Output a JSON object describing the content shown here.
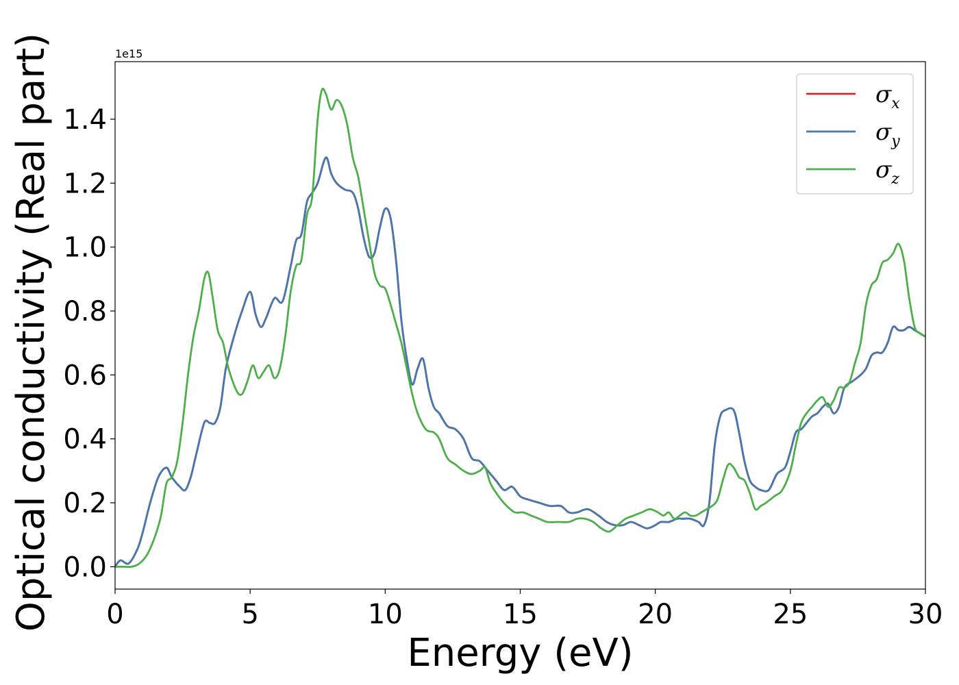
{
  "chart_data": {
    "type": "line",
    "title": "",
    "xlabel": "Energy (eV)",
    "ylabel": "Optical conductivity (Real part)",
    "y_offset_label": "1e15",
    "xlim": [
      0,
      30
    ],
    "ylim": [
      -0.07,
      1.58
    ],
    "y_scale_factor": 1000000000000000.0,
    "xticks": [
      0,
      5,
      10,
      15,
      20,
      25,
      30
    ],
    "xtick_labels": [
      "0",
      "5",
      "10",
      "15",
      "20",
      "25",
      "30"
    ],
    "yticks": [
      0.0,
      0.2,
      0.4,
      0.6,
      0.8,
      1.0,
      1.2,
      1.4
    ],
    "ytick_labels": [
      "0.0",
      "0.2",
      "0.4",
      "0.6",
      "0.8",
      "1.0",
      "1.2",
      "1.4"
    ],
    "grid": false,
    "legend_position": "top-right",
    "series": [
      {
        "name": "σx",
        "sym": "σ",
        "sub": "x",
        "color": "#d62728",
        "x": [
          0,
          0.2,
          0.5,
          0.8,
          1.0,
          1.3,
          1.6,
          1.9,
          2.1,
          2.4,
          2.6,
          2.8,
          3.0,
          3.3,
          3.5,
          3.7,
          3.9,
          4.1,
          4.4,
          4.7,
          5.0,
          5.2,
          5.4,
          5.6,
          5.9,
          6.2,
          6.5,
          6.7,
          6.9,
          7.1,
          7.3,
          7.5,
          7.8,
          8.0,
          8.2,
          8.5,
          8.8,
          9.0,
          9.2,
          9.4,
          9.6,
          9.8,
          10.0,
          10.2,
          10.4,
          10.6,
          10.8,
          11.0,
          11.2,
          11.4,
          11.6,
          11.8,
          12.0,
          12.3,
          12.6,
          12.9,
          13.2,
          13.5,
          13.8,
          14.1,
          14.4,
          14.7,
          15.0,
          15.3,
          15.7,
          16.1,
          16.5,
          16.8,
          17.1,
          17.5,
          17.9,
          18.2,
          18.5,
          18.8,
          19.1,
          19.4,
          19.7,
          20.0,
          20.2,
          20.5,
          20.8,
          21.0,
          21.3,
          21.6,
          21.8,
          22.0,
          22.2,
          22.4,
          22.6,
          22.9,
          23.1,
          23.3,
          23.5,
          23.7,
          23.9,
          24.2,
          24.5,
          24.8,
          25.0,
          25.2,
          25.4,
          25.6,
          25.8,
          26.0,
          26.2,
          26.4,
          26.6,
          26.8,
          27.0,
          27.3,
          27.6,
          27.8,
          28.0,
          28.2,
          28.4,
          28.6,
          28.8,
          29.0,
          29.2,
          29.4,
          29.6,
          29.8,
          30.0
        ],
        "y": [
          0.0,
          0.02,
          0.01,
          0.05,
          0.1,
          0.2,
          0.28,
          0.31,
          0.28,
          0.25,
          0.24,
          0.28,
          0.35,
          0.45,
          0.45,
          0.45,
          0.5,
          0.62,
          0.72,
          0.8,
          0.86,
          0.79,
          0.75,
          0.78,
          0.84,
          0.83,
          0.94,
          1.02,
          1.04,
          1.14,
          1.17,
          1.2,
          1.28,
          1.23,
          1.2,
          1.18,
          1.17,
          1.12,
          1.03,
          0.97,
          0.98,
          1.06,
          1.12,
          1.09,
          0.96,
          0.77,
          0.65,
          0.57,
          0.62,
          0.65,
          0.56,
          0.5,
          0.48,
          0.44,
          0.43,
          0.4,
          0.34,
          0.33,
          0.3,
          0.27,
          0.24,
          0.25,
          0.22,
          0.21,
          0.2,
          0.19,
          0.19,
          0.17,
          0.17,
          0.18,
          0.16,
          0.14,
          0.13,
          0.13,
          0.14,
          0.13,
          0.12,
          0.13,
          0.14,
          0.14,
          0.15,
          0.15,
          0.15,
          0.14,
          0.13,
          0.2,
          0.38,
          0.47,
          0.49,
          0.49,
          0.42,
          0.33,
          0.27,
          0.25,
          0.24,
          0.24,
          0.29,
          0.31,
          0.36,
          0.42,
          0.43,
          0.45,
          0.47,
          0.48,
          0.5,
          0.51,
          0.48,
          0.5,
          0.56,
          0.58,
          0.6,
          0.62,
          0.66,
          0.67,
          0.67,
          0.7,
          0.75,
          0.74,
          0.74,
          0.75,
          0.74,
          0.73,
          0.72
        ]
      },
      {
        "name": "σy",
        "sym": "σ",
        "sub": "y",
        "color": "#4678b0",
        "x": [
          0,
          0.2,
          0.5,
          0.8,
          1.0,
          1.3,
          1.6,
          1.9,
          2.1,
          2.4,
          2.6,
          2.8,
          3.0,
          3.3,
          3.5,
          3.7,
          3.9,
          4.1,
          4.4,
          4.7,
          5.0,
          5.2,
          5.4,
          5.6,
          5.9,
          6.2,
          6.5,
          6.7,
          6.9,
          7.1,
          7.3,
          7.5,
          7.8,
          8.0,
          8.2,
          8.5,
          8.8,
          9.0,
          9.2,
          9.4,
          9.6,
          9.8,
          10.0,
          10.2,
          10.4,
          10.6,
          10.8,
          11.0,
          11.2,
          11.4,
          11.6,
          11.8,
          12.0,
          12.3,
          12.6,
          12.9,
          13.2,
          13.5,
          13.8,
          14.1,
          14.4,
          14.7,
          15.0,
          15.3,
          15.7,
          16.1,
          16.5,
          16.8,
          17.1,
          17.5,
          17.9,
          18.2,
          18.5,
          18.8,
          19.1,
          19.4,
          19.7,
          20.0,
          20.2,
          20.5,
          20.8,
          21.0,
          21.3,
          21.6,
          21.8,
          22.0,
          22.2,
          22.4,
          22.6,
          22.9,
          23.1,
          23.3,
          23.5,
          23.7,
          23.9,
          24.2,
          24.5,
          24.8,
          25.0,
          25.2,
          25.4,
          25.6,
          25.8,
          26.0,
          26.2,
          26.4,
          26.6,
          26.8,
          27.0,
          27.3,
          27.6,
          27.8,
          28.0,
          28.2,
          28.4,
          28.6,
          28.8,
          29.0,
          29.2,
          29.4,
          29.6,
          29.8,
          30.0
        ],
        "y": [
          0.0,
          0.02,
          0.01,
          0.05,
          0.1,
          0.2,
          0.28,
          0.31,
          0.28,
          0.25,
          0.24,
          0.28,
          0.35,
          0.45,
          0.45,
          0.45,
          0.5,
          0.62,
          0.72,
          0.8,
          0.86,
          0.79,
          0.75,
          0.78,
          0.84,
          0.83,
          0.94,
          1.02,
          1.04,
          1.14,
          1.17,
          1.2,
          1.28,
          1.23,
          1.2,
          1.18,
          1.17,
          1.12,
          1.03,
          0.97,
          0.98,
          1.06,
          1.12,
          1.09,
          0.96,
          0.77,
          0.65,
          0.57,
          0.62,
          0.65,
          0.56,
          0.5,
          0.48,
          0.44,
          0.43,
          0.4,
          0.34,
          0.33,
          0.3,
          0.27,
          0.24,
          0.25,
          0.22,
          0.21,
          0.2,
          0.19,
          0.19,
          0.17,
          0.17,
          0.18,
          0.16,
          0.14,
          0.13,
          0.13,
          0.14,
          0.13,
          0.12,
          0.13,
          0.14,
          0.14,
          0.15,
          0.15,
          0.15,
          0.14,
          0.13,
          0.2,
          0.38,
          0.47,
          0.49,
          0.49,
          0.42,
          0.33,
          0.27,
          0.25,
          0.24,
          0.24,
          0.29,
          0.31,
          0.36,
          0.42,
          0.43,
          0.45,
          0.47,
          0.48,
          0.5,
          0.51,
          0.48,
          0.5,
          0.56,
          0.58,
          0.6,
          0.62,
          0.66,
          0.67,
          0.67,
          0.7,
          0.75,
          0.74,
          0.74,
          0.75,
          0.74,
          0.73,
          0.72
        ]
      },
      {
        "name": "σz",
        "sym": "σ",
        "sub": "z",
        "color": "#4daf4a",
        "x": [
          0,
          0.3,
          0.6,
          0.9,
          1.2,
          1.5,
          1.7,
          1.9,
          2.1,
          2.3,
          2.5,
          2.7,
          2.9,
          3.1,
          3.3,
          3.45,
          3.6,
          3.8,
          4.0,
          4.2,
          4.5,
          4.7,
          4.9,
          5.1,
          5.3,
          5.5,
          5.7,
          5.9,
          6.1,
          6.3,
          6.5,
          6.7,
          6.9,
          7.1,
          7.3,
          7.5,
          7.65,
          7.8,
          8.0,
          8.2,
          8.4,
          8.6,
          8.8,
          9.0,
          9.2,
          9.4,
          9.6,
          9.8,
          10.0,
          10.2,
          10.4,
          10.6,
          10.8,
          11.0,
          11.2,
          11.5,
          11.8,
          12.0,
          12.3,
          12.6,
          12.9,
          13.2,
          13.5,
          13.7,
          13.9,
          14.2,
          14.5,
          14.8,
          15.1,
          15.4,
          15.7,
          16.0,
          16.4,
          16.8,
          17.1,
          17.4,
          17.7,
          18.0,
          18.3,
          18.6,
          18.9,
          19.2,
          19.5,
          19.8,
          20.1,
          20.3,
          20.5,
          20.7,
          20.9,
          21.1,
          21.3,
          21.5,
          21.7,
          21.9,
          22.1,
          22.3,
          22.5,
          22.7,
          22.9,
          23.1,
          23.3,
          23.5,
          23.7,
          23.9,
          24.1,
          24.4,
          24.7,
          25.0,
          25.2,
          25.4,
          25.6,
          25.8,
          26.0,
          26.2,
          26.4,
          26.6,
          26.8,
          27.0,
          27.2,
          27.4,
          27.6,
          27.8,
          28.0,
          28.2,
          28.4,
          28.6,
          28.8,
          29.0,
          29.2,
          29.4,
          29.6,
          29.8,
          30.0
        ],
        "y": [
          0.0,
          0.0,
          0.0,
          0.01,
          0.04,
          0.1,
          0.16,
          0.26,
          0.28,
          0.33,
          0.45,
          0.6,
          0.72,
          0.8,
          0.9,
          0.92,
          0.85,
          0.74,
          0.7,
          0.62,
          0.55,
          0.54,
          0.58,
          0.63,
          0.59,
          0.61,
          0.63,
          0.59,
          0.62,
          0.72,
          0.86,
          0.94,
          0.96,
          1.1,
          1.16,
          1.4,
          1.49,
          1.48,
          1.43,
          1.46,
          1.44,
          1.38,
          1.28,
          1.22,
          1.12,
          1.02,
          0.92,
          0.88,
          0.87,
          0.82,
          0.76,
          0.7,
          0.62,
          0.54,
          0.48,
          0.43,
          0.42,
          0.4,
          0.34,
          0.32,
          0.3,
          0.29,
          0.3,
          0.31,
          0.26,
          0.22,
          0.19,
          0.17,
          0.17,
          0.16,
          0.15,
          0.14,
          0.14,
          0.14,
          0.15,
          0.15,
          0.14,
          0.12,
          0.11,
          0.13,
          0.15,
          0.16,
          0.17,
          0.18,
          0.17,
          0.16,
          0.17,
          0.15,
          0.16,
          0.17,
          0.16,
          0.16,
          0.17,
          0.18,
          0.19,
          0.21,
          0.27,
          0.32,
          0.31,
          0.28,
          0.27,
          0.23,
          0.18,
          0.19,
          0.2,
          0.22,
          0.24,
          0.3,
          0.38,
          0.45,
          0.48,
          0.5,
          0.52,
          0.53,
          0.5,
          0.52,
          0.56,
          0.56,
          0.58,
          0.64,
          0.7,
          0.82,
          0.88,
          0.9,
          0.95,
          0.96,
          0.98,
          1.01,
          0.96,
          0.84,
          0.75,
          0.73,
          0.72
        ]
      }
    ]
  }
}
